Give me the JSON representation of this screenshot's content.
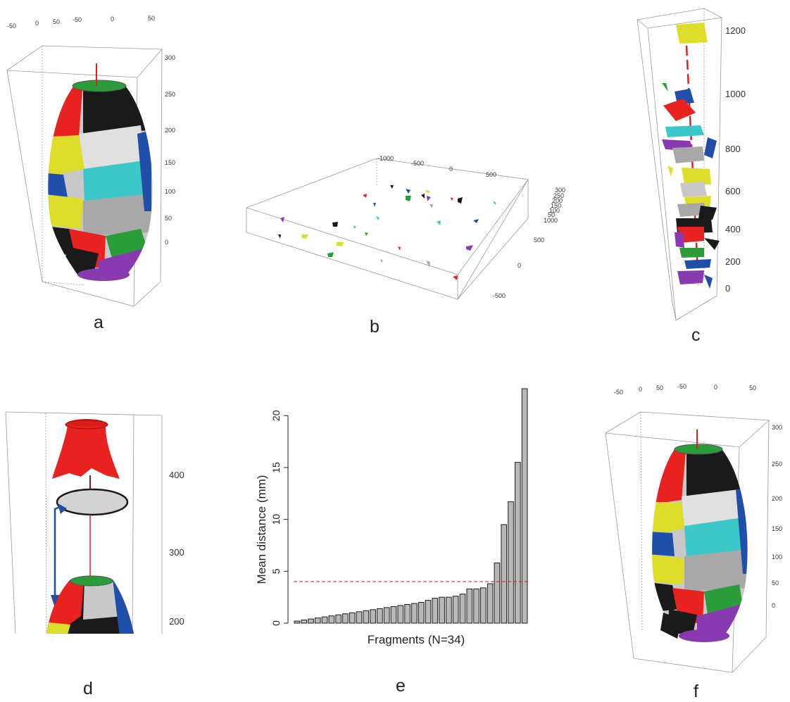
{
  "panel_labels": {
    "a": "a",
    "b": "b",
    "c": "c",
    "d": "d",
    "e": "e",
    "f": "f"
  },
  "panel_a": {
    "top_ticks": [
      "-50",
      "0",
      "50",
      "-50",
      "0",
      "50"
    ],
    "z_ticks": [
      "300",
      "250",
      "200",
      "150",
      "100",
      "50",
      "0"
    ]
  },
  "panel_b": {
    "top_ticks": [
      "-1000",
      "-500",
      "0",
      "500"
    ],
    "z_ticks": [
      "300",
      "250",
      "200",
      "150",
      "100",
      "50",
      "1000"
    ],
    "side_ticks": [
      "500",
      "0",
      "-500"
    ]
  },
  "panel_c": {
    "z_ticks": [
      "1200",
      "1000",
      "800",
      "600",
      "400",
      "200",
      "0"
    ]
  },
  "panel_d": {
    "z_ticks": [
      "400",
      "300",
      "200"
    ]
  },
  "panel_f": {
    "top_ticks": [
      "-50",
      "0",
      "50",
      "-50",
      "0",
      "50"
    ],
    "z_ticks": [
      "300",
      "250",
      "200",
      "150",
      "100",
      "50",
      "0"
    ]
  },
  "fragment_colors": [
    "#e8231f",
    "#1a1a1a",
    "#c9c9c9",
    "#2a9d3a",
    "#1f4fa8",
    "#dede2a",
    "#3cc8c8",
    "#8a3ab0"
  ],
  "chart_data": {
    "type": "bar",
    "xlabel": "Fragments (N=34)",
    "ylabel": "Mean distance (mm)",
    "ylim": [
      0,
      22.6
    ],
    "yticks": [
      0,
      5,
      10,
      15,
      20
    ],
    "threshold": 4.0,
    "threshold_color": "#e02020",
    "bar_color": "#b8b8b8",
    "values": [
      0.2,
      0.3,
      0.4,
      0.5,
      0.6,
      0.7,
      0.8,
      0.9,
      1.0,
      1.1,
      1.2,
      1.3,
      1.4,
      1.5,
      1.6,
      1.7,
      1.8,
      1.9,
      2.0,
      2.2,
      2.4,
      2.5,
      2.5,
      2.6,
      2.8,
      3.3,
      3.3,
      3.4,
      3.8,
      5.8,
      9.5,
      11.7,
      15.5,
      22.6
    ]
  }
}
